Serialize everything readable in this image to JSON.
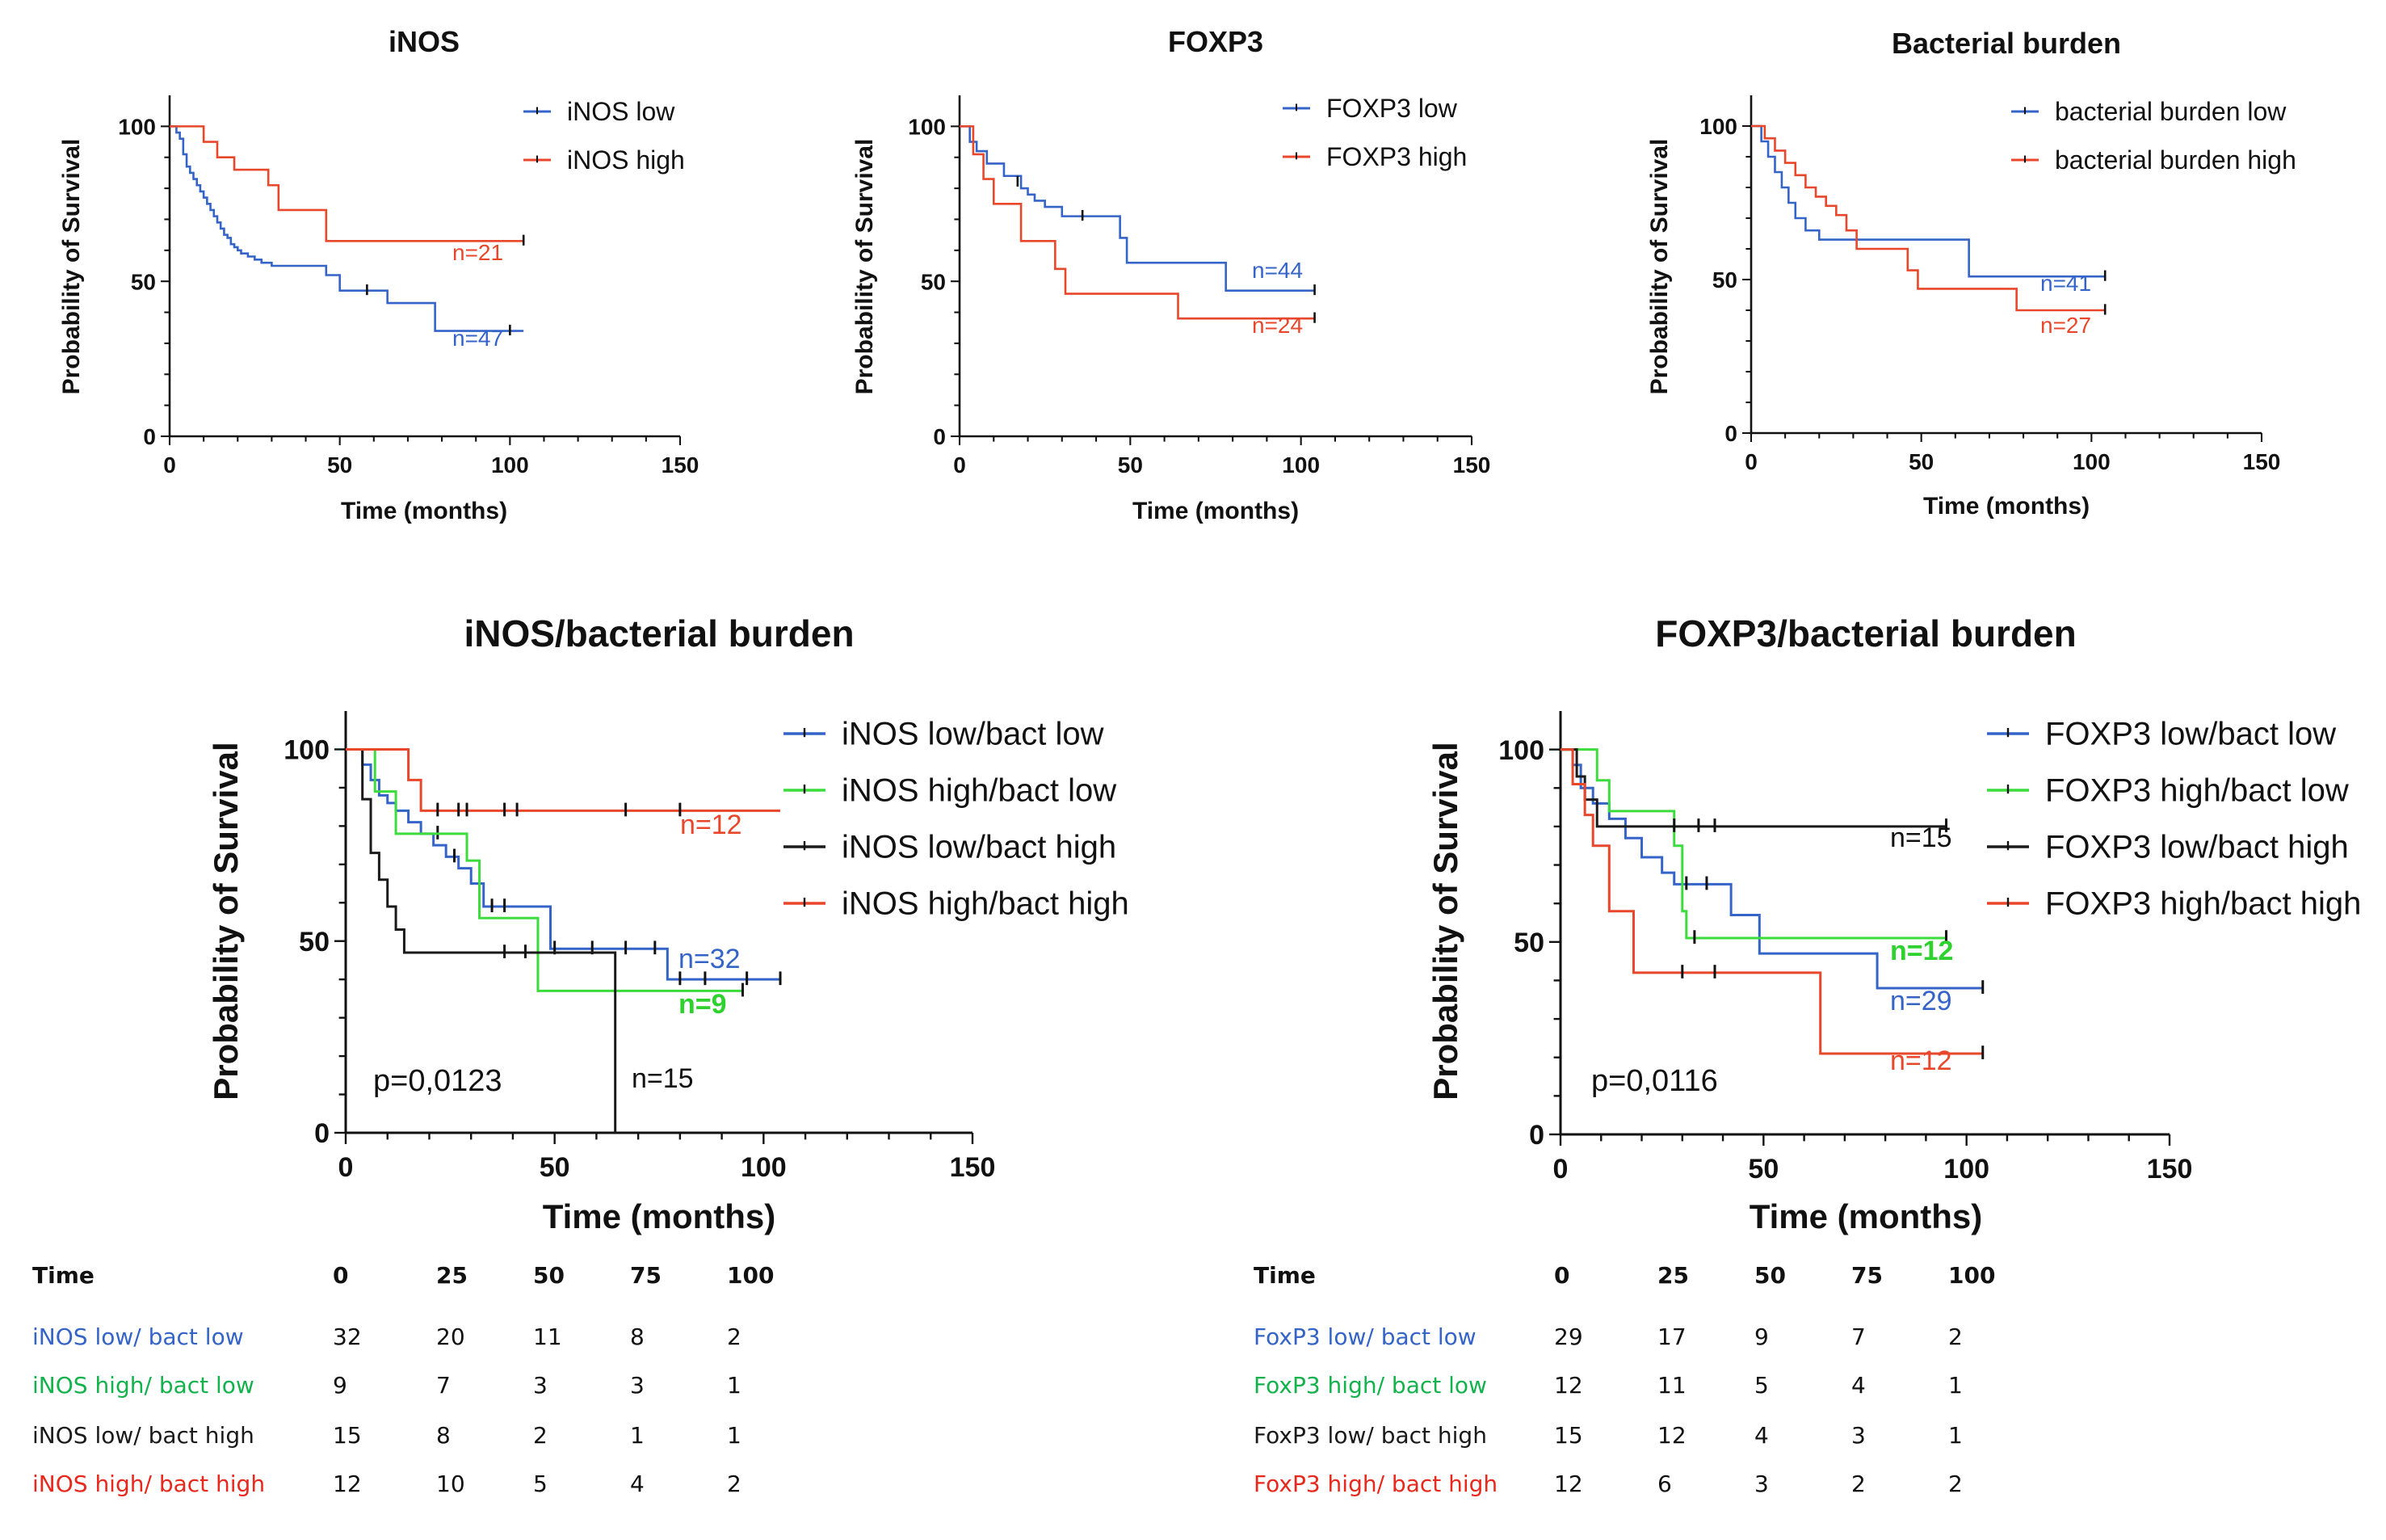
{
  "colors": {
    "blue": "#3464c8",
    "red": "#e8472b",
    "green": "#3ddc3d",
    "black": "#1a1a1a",
    "tableGreen": "#14b24c",
    "tableRed": "#e8281c"
  },
  "chart_data": [
    {
      "type": "line",
      "subtype": "kaplan-meier",
      "title": "iNOS",
      "xlabel": "Time (months)",
      "ylabel": "Probability of Survival",
      "xlim": [
        0,
        150
      ],
      "ylim": [
        0,
        110
      ],
      "xticks": [
        0,
        50,
        100,
        150
      ],
      "yticks": [
        0,
        50,
        100
      ],
      "series": [
        {
          "name": "iNOS low",
          "color": "blue",
          "n_label": "n=47",
          "x": [
            0,
            2,
            3,
            4,
            5,
            6,
            7,
            8,
            9,
            10,
            11,
            12,
            13,
            14,
            15,
            16,
            17,
            18,
            19,
            20,
            21,
            23,
            25,
            27,
            30,
            46,
            50,
            64,
            78,
            104
          ],
          "y": [
            100,
            98,
            96,
            91,
            87,
            85,
            83,
            81,
            79,
            77,
            75,
            73,
            71,
            69,
            67,
            65,
            64,
            62,
            61,
            60,
            59,
            58,
            57,
            56,
            55,
            52,
            47,
            43,
            34,
            34
          ],
          "censors": [
            [
              58,
              47
            ],
            [
              100,
              34
            ]
          ]
        },
        {
          "name": "iNOS high",
          "color": "red",
          "n_label": "n=21",
          "x": [
            0,
            10,
            14,
            19,
            29,
            32,
            46,
            104
          ],
          "y": [
            100,
            95,
            90,
            86,
            81,
            73,
            63,
            63
          ],
          "censors": [
            [
              104,
              63
            ]
          ]
        }
      ]
    },
    {
      "type": "line",
      "subtype": "kaplan-meier",
      "title": "FOXP3",
      "xlabel": "Time (months)",
      "ylabel": "Probability of Survival",
      "xlim": [
        0,
        150
      ],
      "ylim": [
        0,
        110
      ],
      "xticks": [
        0,
        50,
        100,
        150
      ],
      "yticks": [
        0,
        50,
        100
      ],
      "series": [
        {
          "name": "FOXP3 low",
          "color": "blue",
          "n_label": "n=44",
          "x": [
            0,
            3,
            5,
            8,
            13,
            18,
            20,
            22,
            25,
            30,
            47,
            49,
            78,
            104
          ],
          "y": [
            100,
            95,
            92,
            88,
            84,
            80,
            78,
            76,
            74,
            71,
            64,
            56,
            47,
            47
          ],
          "censors": [
            [
              17,
              82
            ],
            [
              36,
              71
            ],
            [
              104,
              47
            ]
          ]
        },
        {
          "name": "FOXP3 high",
          "color": "red",
          "n_label": "n=24",
          "x": [
            0,
            4,
            7,
            10,
            18,
            28,
            31,
            64,
            104
          ],
          "y": [
            100,
            91,
            83,
            75,
            63,
            54,
            46,
            38,
            38
          ],
          "censors": [
            [
              104,
              38
            ]
          ]
        }
      ]
    },
    {
      "type": "line",
      "subtype": "kaplan-meier",
      "title": "Bacterial burden",
      "xlabel": "Time (months)",
      "ylabel": "Probability of Survival",
      "xlim": [
        0,
        150
      ],
      "ylim": [
        0,
        110
      ],
      "xticks": [
        0,
        50,
        100,
        150
      ],
      "yticks": [
        0,
        50,
        100
      ],
      "series": [
        {
          "name": "bacterial burden low",
          "color": "blue",
          "n_label": "n=41",
          "x": [
            0,
            3,
            5,
            7,
            9,
            11,
            13,
            16,
            20,
            64,
            104
          ],
          "y": [
            100,
            95,
            90,
            85,
            80,
            75,
            70,
            66,
            63,
            51,
            51
          ],
          "censors": [
            [
              104,
              51
            ]
          ]
        },
        {
          "name": "bacterial burden high",
          "color": "red",
          "n_label": "n=27",
          "x": [
            0,
            4,
            7,
            10,
            13,
            16,
            19,
            22,
            25,
            28,
            31,
            46,
            49,
            78,
            104
          ],
          "y": [
            100,
            96,
            92,
            88,
            84,
            80,
            77,
            74,
            71,
            66,
            60,
            53,
            47,
            40,
            40
          ],
          "censors": [
            [
              104,
              40
            ]
          ]
        }
      ]
    },
    {
      "type": "line",
      "subtype": "kaplan-meier",
      "title": "iNOS/bacterial burden",
      "xlabel": "Time (months)",
      "ylabel": "Probability of Survival",
      "xlim": [
        0,
        150
      ],
      "ylim": [
        0,
        110
      ],
      "xticks": [
        0,
        50,
        100,
        150
      ],
      "yticks": [
        0,
        50,
        100
      ],
      "annotation": "p=0,0123",
      "series": [
        {
          "name": "iNOS low/bact low",
          "color": "blue",
          "n_label": "n=32",
          "x": [
            0,
            4,
            6,
            8,
            10,
            12,
            15,
            18,
            21,
            24,
            27,
            30,
            33,
            49,
            77,
            104
          ],
          "y": [
            100,
            96,
            92,
            88,
            86,
            84,
            81,
            78,
            75,
            72,
            69,
            65,
            59,
            48,
            40,
            40
          ],
          "censors": [
            [
              22,
              78
            ],
            [
              26,
              72
            ],
            [
              35,
              59
            ],
            [
              38,
              59
            ],
            [
              50,
              48
            ],
            [
              59,
              48
            ],
            [
              67,
              48
            ],
            [
              74,
              48
            ],
            [
              80,
              40
            ],
            [
              86,
              40
            ],
            [
              96,
              40
            ],
            [
              104,
              40
            ]
          ]
        },
        {
          "name": "iNOS high/bact low",
          "color": "green",
          "n_label": "n=9",
          "x": [
            0,
            7,
            12,
            29,
            32,
            46,
            95
          ],
          "y": [
            100,
            89,
            78,
            71,
            56,
            37,
            37
          ],
          "censors": [
            [
              95,
              37
            ]
          ]
        },
        {
          "name": "iNOS low/bact high",
          "color": "black",
          "n_label": "n=15",
          "x": [
            0,
            4,
            6,
            8,
            10,
            12,
            14,
            64,
            64.5
          ],
          "y": [
            100,
            87,
            73,
            66,
            59,
            53,
            47,
            47,
            0
          ],
          "censors": [
            [
              38,
              47
            ],
            [
              43,
              47
            ]
          ]
        },
        {
          "name": "iNOS high/bact high",
          "color": "red",
          "n_label": "n=12",
          "x": [
            0,
            15,
            18,
            104
          ],
          "y": [
            100,
            92,
            84,
            84
          ],
          "censors": [
            [
              22,
              84
            ],
            [
              27,
              84
            ],
            [
              29,
              84
            ],
            [
              38,
              84
            ],
            [
              41,
              84
            ],
            [
              67,
              84
            ],
            [
              80,
              84
            ]
          ]
        }
      ],
      "table": {
        "header": [
          "Time",
          "0",
          "25",
          "50",
          "75",
          "100"
        ],
        "rows": [
          {
            "label": "iNOS low/ bact low",
            "color": "blue",
            "values": [
              "32",
              "20",
              "11",
              "8",
              "2"
            ]
          },
          {
            "label": "iNOS high/ bact low",
            "color": "tableGreen",
            "values": [
              "9",
              "7",
              "3",
              "3",
              "1"
            ]
          },
          {
            "label": "iNOS low/ bact high",
            "color": "black",
            "values": [
              "15",
              "8",
              "2",
              "1",
              "1"
            ]
          },
          {
            "label": "iNOS high/ bact high",
            "color": "tableRed",
            "values": [
              "12",
              "10",
              "5",
              "4",
              "2"
            ]
          }
        ]
      }
    },
    {
      "type": "line",
      "subtype": "kaplan-meier",
      "title": "FOXP3/bacterial burden",
      "xlabel": "Time (months)",
      "ylabel": "Probability of Survival",
      "xlim": [
        0,
        150
      ],
      "ylim": [
        0,
        110
      ],
      "xticks": [
        0,
        50,
        100,
        150
      ],
      "yticks": [
        0,
        50,
        100
      ],
      "annotation": "p=0,0116",
      "series": [
        {
          "name": "FOXP3 low/bact low",
          "color": "blue",
          "n_label": "n=29",
          "x": [
            0,
            3,
            5,
            8,
            12,
            16,
            20,
            25,
            28,
            42,
            49,
            78,
            104
          ],
          "y": [
            100,
            96,
            90,
            86,
            82,
            77,
            72,
            68,
            65,
            57,
            47,
            38,
            38
          ],
          "censors": [
            [
              31,
              65
            ],
            [
              36,
              65
            ],
            [
              104,
              38
            ]
          ]
        },
        {
          "name": "FOXP3 high/bact low",
          "color": "green",
          "n_label": "n=12",
          "x": [
            0,
            9,
            12,
            28,
            30,
            31,
            95
          ],
          "y": [
            100,
            92,
            84,
            75,
            58,
            51,
            51
          ],
          "censors": [
            [
              33,
              51
            ],
            [
              95,
              51
            ]
          ]
        },
        {
          "name": "FOXP3 low/bact high",
          "color": "black",
          "n_label": "n=15",
          "x": [
            0,
            4,
            6,
            9,
            95
          ],
          "y": [
            100,
            93,
            87,
            80,
            80
          ],
          "censors": [
            [
              28,
              80
            ],
            [
              34,
              80
            ],
            [
              38,
              80
            ],
            [
              95,
              80
            ]
          ]
        },
        {
          "name": "FOXP3 high/bact high",
          "color": "red",
          "n_label": "n=12",
          "x": [
            0,
            3,
            6,
            8,
            12,
            18,
            64,
            104
          ],
          "y": [
            100,
            91,
            83,
            75,
            58,
            42,
            21,
            21
          ],
          "censors": [
            [
              30,
              42
            ],
            [
              38,
              42
            ],
            [
              104,
              21
            ]
          ]
        }
      ],
      "table": {
        "header": [
          "Time",
          "0",
          "25",
          "50",
          "75",
          "100"
        ],
        "rows": [
          {
            "label": "FoxP3 low/ bact low",
            "color": "blue",
            "values": [
              "29",
              "17",
              "9",
              "7",
              "2"
            ]
          },
          {
            "label": "FoxP3 high/ bact low",
            "color": "tableGreen",
            "values": [
              "12",
              "11",
              "5",
              "4",
              "1"
            ]
          },
          {
            "label": "FoxP3 low/ bact high",
            "color": "black",
            "values": [
              "15",
              "12",
              "4",
              "3",
              "1"
            ]
          },
          {
            "label": "FoxP3 high/ bact high",
            "color": "tableRed",
            "values": [
              "12",
              "6",
              "3",
              "2",
              "2"
            ]
          }
        ]
      }
    }
  ]
}
